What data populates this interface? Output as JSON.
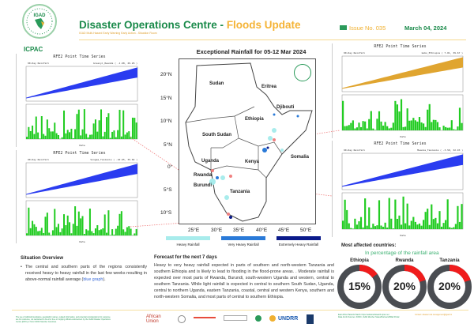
{
  "header": {
    "title_main": "Disaster Operations Centre - ",
    "title_highlight": "Floods Update",
    "subtitle": "IGAD Multi-Hazard Early Warning Early Action - Situation Room",
    "issue": "Issue No. 035",
    "date": "March 04, 2024",
    "org": "ICPAC",
    "logo_text": "IGAD"
  },
  "charts": [
    {
      "title": "RFE2 Point Time Series",
      "left_label": "90-Day Rainfall",
      "station": "Gisenyi_Rwanda ( -1.68, 29.26 )",
      "xlabel": "Date",
      "fill": "#2a3cf0"
    },
    {
      "title": "RFE2 Point Time Series",
      "left_label": "90-Day Rainfall",
      "station": "Songea_Tanzania ( -10.65, 35.64 )",
      "xlabel": "Date",
      "fill": "#2a3cf0"
    },
    {
      "title": "RFE2 Point Time Series",
      "left_label": "90-Day Rainfall",
      "station": "Gobo_Ethiopia ( 7.01, 39.67 )",
      "xlabel": "Date",
      "fill": "#e0a530"
    },
    {
      "title": "RFE2 Point Time Series",
      "left_label": "90-Day Rainfall",
      "station": "Mwanza_Tanzania ( -3.50, 32.93 )",
      "xlabel": "Date",
      "fill": "#2a3cf0"
    }
  ],
  "map": {
    "title": "Exceptional Rainfall for 05-12 Mar 2024",
    "countries": [
      "Sudan",
      "Eritrea",
      "Djibouti",
      "Ethiopia",
      "South Sudan",
      "Somalia",
      "Uganda",
      "Kenya",
      "Rwanda",
      "Burundi",
      "Tanzania"
    ],
    "lat_ticks": [
      "20°N",
      "15°N",
      "10°N",
      "5°N",
      "0°",
      "5°S",
      "10°S"
    ],
    "lon_ticks": [
      "25°E",
      "30°E",
      "35°E",
      "40°E",
      "45°E",
      "50°E"
    ],
    "legend": [
      {
        "label": "Heavy Rainfall",
        "color": "#a8ecec"
      },
      {
        "label": "Very Heavy Rainfall",
        "color": "#2a7ad8"
      },
      {
        "label": "Extremely Heavy Rainfall",
        "color": "#0a1a8a"
      }
    ]
  },
  "situation": {
    "heading": "Situation Overview",
    "text": "The central and southern parts of the regions consistently received heavy to heavy rainfall in the last few weeks resulting in above-normal rainfall average (",
    "link": "blue graph",
    "tail": ")."
  },
  "forecast": {
    "heading": "Forecast for the next 7 days",
    "text": "Heavy to very heavy rainfall expected in parts of southern and north-western Tanzania and southern Ethiopia and is likely to lead to flooding in the flood-prone areas. . Moderate rainfall is expected over most parts of Rwanda, Burundi, south-western Uganda and western, central to southern Tanzania. While light rainfall is expected in central to southern South Sudan, Uganda, central to northern Uganda, eastern Tanzania, coastal, central and western Kenya, southern and north-western Somalia, and most parts of central to southern Ethiopia."
  },
  "affected": {
    "heading": "Most affected countries:",
    "subheading": "In percentage of the rainfall area",
    "countries": [
      {
        "name": "Ethiopia",
        "percent": 15,
        "label": "15%"
      },
      {
        "name": "Rwanda",
        "percent": 20,
        "label": "20%"
      },
      {
        "name": "Tanzania",
        "percent": 20,
        "label": "20%"
      }
    ],
    "colors": {
      "ring": "#4a4d52",
      "fill": "#f01c1c"
    }
  },
  "footer": {
    "disclaimer": "The use of political boundaries, geographic names, related information, and potential considerations for response are for reference, not warranted to be error free or implying official endorsement by the IGAD Disaster Operations Centre (DOC) or from ICPAC Member Countries.",
    "partners": [
      "African Union",
      "UNDRR"
    ],
    "sources": "East Africa Hazards Watch: https://eahazardswatch.icpac.net",
    "sources2": "Data & Info Sources: ICPAC, IGAD Member States/Partners/RFE2 Portal",
    "contact": "Contact: disaster.risk.management@igad.int"
  }
}
